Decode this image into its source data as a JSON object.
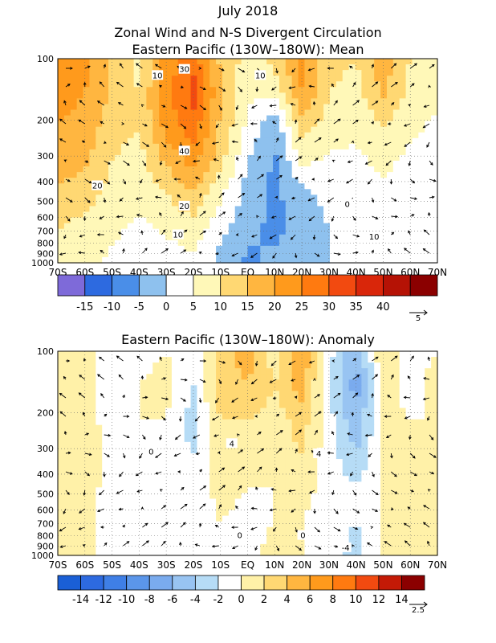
{
  "figure": {
    "title": "July 2018",
    "subtitle": "Zonal Wind and N-S Divergent Circulation"
  },
  "chart_data": [
    {
      "type": "heatmap",
      "title": "Eastern Pacific (130W–180W): Mean",
      "y_scale": "log",
      "y_axis": "pressure (hPa), inverted",
      "ylim": [
        1000,
        100
      ],
      "y_ticks": [
        "100",
        "200",
        "300",
        "400",
        "500",
        "600",
        "700",
        "800",
        "900",
        "1000"
      ],
      "x_ticks": [
        "70S",
        "60S",
        "50S",
        "40S",
        "30S",
        "20S",
        "10S",
        "EQ",
        "10N",
        "20N",
        "30N",
        "40N",
        "50N",
        "60N",
        "70N"
      ],
      "colorbar": {
        "labels": [
          "-15",
          "-10",
          "-5",
          "0",
          "5",
          "10",
          "15",
          "20",
          "25",
          "30",
          "35",
          "40"
        ],
        "colors": [
          "#7e6ad9",
          "#2d6ae0",
          "#4a8ee8",
          "#8ec1ee",
          "#ffffff",
          "#fff8b8",
          "#ffd873",
          "#ffb640",
          "#ff9a1c",
          "#ff7a10",
          "#f24a10",
          "#d9260a",
          "#b51205",
          "#8b0000"
        ]
      },
      "contour_labels": [
        "30",
        "40",
        "20",
        "20",
        "10",
        "10",
        "10",
        "0",
        "10"
      ],
      "vector_reference": "5",
      "values": [
        [
          24,
          22,
          14,
          8,
          22,
          28,
          14,
          8,
          12,
          22,
          12,
          10,
          18,
          10,
          8
        ],
        [
          22,
          20,
          14,
          10,
          24,
          32,
          16,
          6,
          6,
          20,
          10,
          8,
          16,
          8,
          6
        ],
        [
          20,
          18,
          12,
          10,
          22,
          28,
          14,
          4,
          -4,
          12,
          8,
          6,
          10,
          6,
          4
        ],
        [
          18,
          16,
          10,
          8,
          16,
          22,
          12,
          0,
          -6,
          6,
          4,
          4,
          6,
          4,
          4
        ],
        [
          14,
          12,
          8,
          6,
          10,
          14,
          6,
          -2,
          -6,
          -2,
          2,
          4,
          4,
          4,
          2
        ],
        [
          10,
          8,
          6,
          4,
          6,
          8,
          2,
          -4,
          -6,
          -4,
          0,
          2,
          2,
          2,
          2
        ],
        [
          6,
          6,
          4,
          2,
          2,
          4,
          -2,
          -6,
          -4,
          -2,
          0,
          2,
          2,
          2,
          2
        ]
      ]
    },
    {
      "type": "heatmap",
      "title": "Eastern Pacific (130W–180W): Anomaly",
      "y_scale": "log",
      "y_axis": "pressure (hPa), inverted",
      "ylim": [
        1000,
        100
      ],
      "y_ticks": [
        "100",
        "200",
        "300",
        "400",
        "500",
        "600",
        "700",
        "800",
        "900",
        "1000"
      ],
      "x_ticks": [
        "70S",
        "60S",
        "50S",
        "40S",
        "30S",
        "20S",
        "10S",
        "EQ",
        "10N",
        "20N",
        "30N",
        "40N",
        "50N",
        "60N",
        "70N"
      ],
      "colorbar": {
        "labels": [
          "-14",
          "-12",
          "-10",
          "-8",
          "-6",
          "-4",
          "-2",
          "0",
          "2",
          "4",
          "6",
          "8",
          "10",
          "12",
          "14"
        ],
        "colors": [
          "#1a5fd6",
          "#2d6ae0",
          "#3f7fe6",
          "#5b96ea",
          "#7aabee",
          "#98c4f2",
          "#b6dcf6",
          "#ffffff",
          "#fff1a8",
          "#ffd873",
          "#ffb640",
          "#ff9a1c",
          "#ff7a10",
          "#f24a10",
          "#c41a06",
          "#8b0000"
        ]
      },
      "contour_labels": [
        "4",
        "4",
        "0",
        "0",
        "0",
        "-4"
      ],
      "vector_reference": "2.5",
      "values": [
        [
          0,
          2,
          -2,
          -1,
          0,
          -2,
          3,
          5,
          1,
          6,
          -1,
          -6,
          2,
          -1,
          0
        ],
        [
          0,
          2,
          -2,
          0,
          1,
          -2,
          3,
          4,
          2,
          5,
          -2,
          -7,
          1,
          -1,
          1
        ],
        [
          0,
          2,
          -2,
          0,
          0,
          -3,
          2,
          2,
          1,
          3,
          -1,
          -6,
          1,
          0,
          0
        ],
        [
          0,
          2,
          -1,
          0,
          -1,
          -2,
          1,
          1,
          1,
          2,
          -1,
          -4,
          0,
          0,
          1
        ],
        [
          1,
          1,
          -1,
          -1,
          -2,
          -2,
          1,
          0,
          0,
          1,
          -1,
          -2,
          0,
          0,
          0
        ],
        [
          1,
          1,
          -1,
          -1,
          -2,
          -1,
          0,
          -1,
          0,
          0,
          -1,
          -2,
          0,
          0,
          1
        ],
        [
          1,
          1,
          -1,
          -1,
          -1,
          -1,
          0,
          -1,
          1,
          0,
          -1,
          -3,
          0,
          0,
          0
        ]
      ]
    }
  ]
}
